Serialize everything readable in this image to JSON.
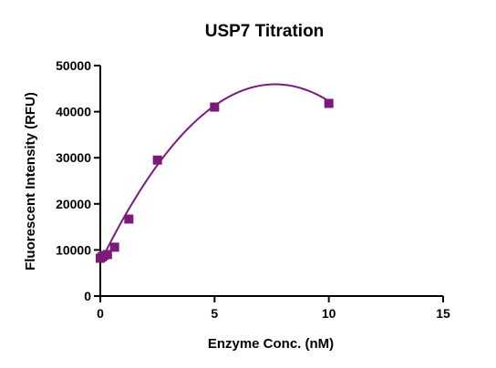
{
  "chart_data": {
    "type": "scatter",
    "title": "USP7 Titration",
    "xlabel": "Enzyme Conc. (nM)",
    "ylabel": "Fluorescent Intensity (RFU)",
    "xlim": [
      0,
      15
    ],
    "ylim": [
      0,
      50000
    ],
    "xticks": [
      0,
      5,
      10,
      15
    ],
    "yticks": [
      0,
      10000,
      20000,
      30000,
      40000,
      50000
    ],
    "grid": false,
    "legend": "none",
    "series": [
      {
        "color": "#7b1a7b",
        "marker": "square",
        "x": [
          0.0,
          0.078,
          0.156,
          0.3125,
          0.625,
          1.25,
          2.5,
          5.0,
          10.0
        ],
        "y": [
          8200,
          8500,
          8800,
          9000,
          10600,
          16700,
          29500,
          41000,
          41800
        ]
      }
    ],
    "fit_curve": {
      "color": "#7b1a7b",
      "type": "quadratic",
      "coefficients": [
        7300,
        10100,
        -660
      ],
      "x_range": [
        0,
        10
      ]
    }
  }
}
